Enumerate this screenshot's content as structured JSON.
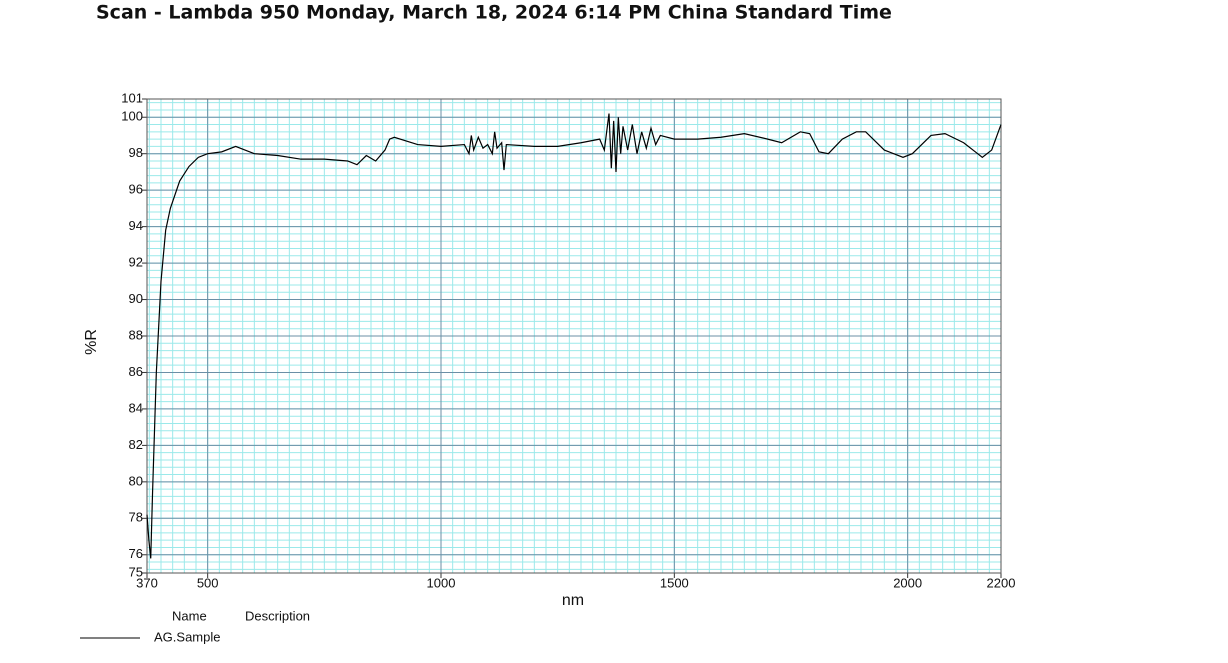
{
  "chart_data": {
    "type": "line",
    "title": "Scan - Lambda 950 Monday, March 18, 2024 6:14 PM China Standard Time",
    "x_label": "nm",
    "y_label": "%R",
    "legend_headers": [
      "Name",
      "Description"
    ],
    "xlim": [
      370,
      2200
    ],
    "ylim": [
      75,
      101
    ],
    "xticks": [
      370,
      500,
      1000,
      1500,
      2000,
      2200
    ],
    "yticks": [
      75,
      76,
      78,
      80,
      82,
      84,
      86,
      88,
      90,
      92,
      94,
      96,
      98,
      100,
      101
    ],
    "grid": true,
    "minor_grid": true,
    "x": [
      370,
      374,
      378,
      382,
      390,
      400,
      410,
      420,
      440,
      460,
      480,
      500,
      530,
      560,
      600,
      650,
      700,
      750,
      800,
      820,
      840,
      860,
      880,
      890,
      900,
      950,
      1000,
      1050,
      1060,
      1065,
      1070,
      1080,
      1090,
      1100,
      1110,
      1115,
      1120,
      1130,
      1135,
      1140,
      1200,
      1250,
      1300,
      1340,
      1350,
      1360,
      1365,
      1370,
      1375,
      1380,
      1385,
      1390,
      1400,
      1410,
      1420,
      1430,
      1440,
      1450,
      1460,
      1470,
      1500,
      1550,
      1600,
      1650,
      1700,
      1730,
      1770,
      1790,
      1810,
      1830,
      1860,
      1890,
      1910,
      1950,
      1990,
      2010,
      2050,
      2080,
      2120,
      2150,
      2160,
      2180,
      2200
    ],
    "series": [
      {
        "name": "AG.Sample",
        "color": "#000000",
        "values": [
          78.2,
          76.8,
          75.8,
          79.5,
          86.0,
          91.0,
          93.8,
          95.0,
          96.5,
          97.3,
          97.8,
          98.0,
          98.1,
          98.4,
          98.0,
          97.9,
          97.7,
          97.7,
          97.6,
          97.4,
          97.9,
          97.6,
          98.2,
          98.8,
          98.9,
          98.5,
          98.4,
          98.5,
          98.0,
          99.0,
          98.2,
          98.9,
          98.3,
          98.5,
          98.0,
          99.2,
          98.3,
          98.6,
          97.1,
          98.5,
          98.4,
          98.4,
          98.6,
          98.8,
          98.2,
          100.2,
          97.2,
          99.8,
          97.0,
          100.0,
          98.0,
          99.5,
          98.2,
          99.6,
          98.0,
          99.2,
          98.3,
          99.4,
          98.5,
          99.0,
          98.8,
          98.8,
          98.9,
          99.1,
          98.8,
          98.6,
          99.2,
          99.1,
          98.1,
          98.0,
          98.8,
          99.2,
          99.2,
          98.2,
          97.8,
          98.0,
          99.0,
          99.1,
          98.6,
          98.0,
          97.8,
          98.2,
          99.6
        ]
      }
    ]
  }
}
